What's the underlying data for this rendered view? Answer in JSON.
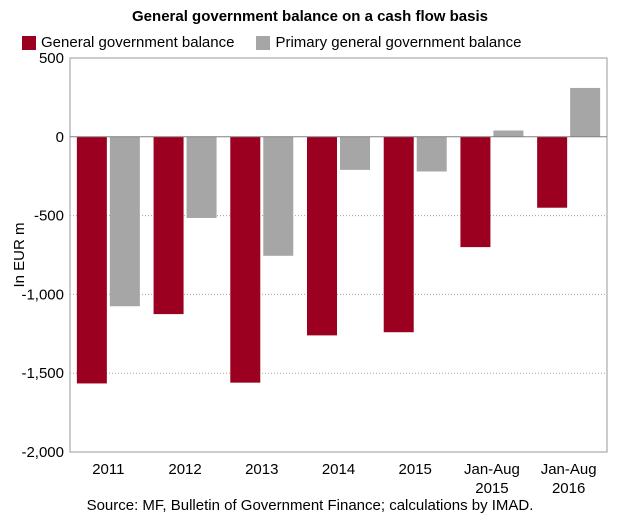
{
  "chart_data": {
    "type": "bar",
    "title": "General government balance on a cash flow basis",
    "ylabel": "In EUR m",
    "xlabel": "",
    "ylim": [
      -2000,
      500
    ],
    "yticks": [
      500,
      0,
      -500,
      -1000,
      -1500,
      -2000
    ],
    "ytick_labels": [
      "500",
      "0",
      "-500",
      "-1,000",
      "-1,500",
      "-2,000"
    ],
    "categories": [
      [
        "2011"
      ],
      [
        "2012"
      ],
      [
        "2013"
      ],
      [
        "2014"
      ],
      [
        "2015"
      ],
      [
        "Jan-Aug",
        "2015"
      ],
      [
        "Jan-Aug",
        "2016"
      ]
    ],
    "series": [
      {
        "name": "General government balance",
        "color": "#9b0021",
        "values": [
          -1565,
          -1125,
          -1560,
          -1260,
          -1240,
          -700,
          -450
        ]
      },
      {
        "name": "Primary general government balance",
        "color": "#a6a6a6",
        "values": [
          -1075,
          -515,
          -755,
          -210,
          -220,
          40,
          310
        ]
      }
    ],
    "grid": true,
    "legend_position": "top",
    "source": "Source: MF, Bulletin of Government Finance; calculations by IMAD."
  }
}
